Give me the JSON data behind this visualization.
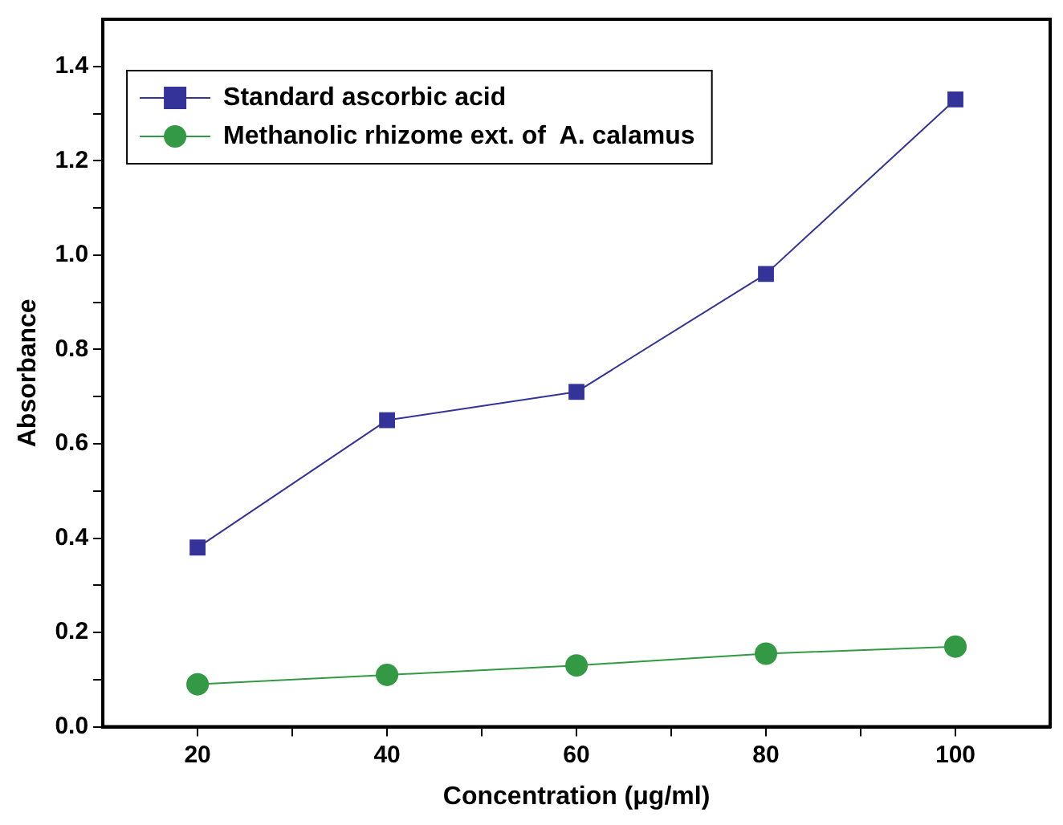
{
  "chart_data": {
    "type": "line",
    "xlabel": "Concentration (μg/ml)",
    "ylabel": "Absorbance",
    "x": [
      20,
      40,
      60,
      80,
      100
    ],
    "series": [
      {
        "name": "Standard ascorbic acid",
        "color": "#333399",
        "marker": "square",
        "values": [
          0.38,
          0.65,
          0.71,
          0.96,
          1.33
        ]
      },
      {
        "name": "Methanolic rhizome ext. of  A. calamus",
        "color": "#339944",
        "marker": "circle",
        "values": [
          0.09,
          0.11,
          0.13,
          0.155,
          0.17
        ]
      }
    ],
    "xlim": [
      10,
      110
    ],
    "xticks": [
      20,
      {
        "value": 30,
        "label": null
      },
      40,
      {
        "value": 50,
        "label": null
      },
      60,
      {
        "value": 70,
        "label": null
      },
      80,
      {
        "value": 90,
        "label": null
      },
      100
    ],
    "ylim": [
      0,
      1.5
    ],
    "yticks": [
      {
        "value": 0,
        "label": "0.0"
      },
      {
        "value": 0.1,
        "label": null
      },
      0.2,
      {
        "value": 0.3,
        "label": null
      },
      0.4,
      {
        "value": 0.5,
        "label": null
      },
      0.6,
      {
        "value": 0.7,
        "label": null
      },
      0.8,
      {
        "value": 0.9,
        "label": null
      },
      {
        "value": 1,
        "label": "1.0"
      },
      {
        "value": 1.1,
        "label": null
      },
      1.2,
      {
        "value": 1.3,
        "label": null
      },
      1.4
    ],
    "grid": false,
    "legend": "top left",
    "line_style": "solid"
  }
}
